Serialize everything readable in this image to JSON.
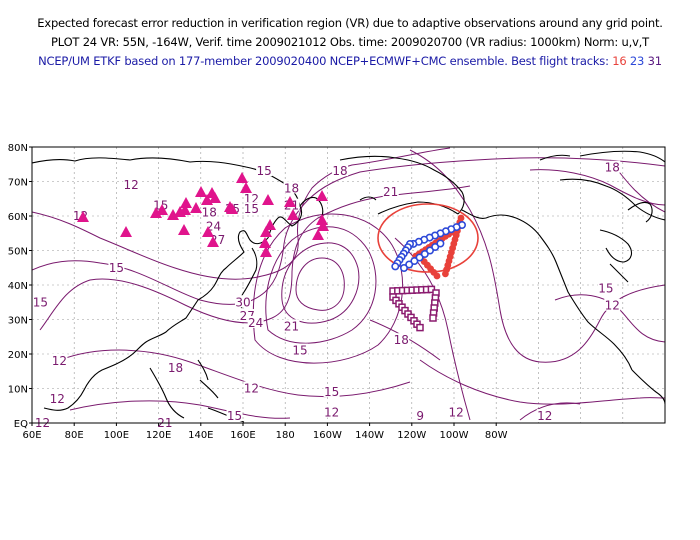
{
  "header": {
    "line1": "Expected forecast error reduction in verification region (VR) due to adaptive observations around any grid point.",
    "line2": "PLOT 24 VR: 55N, -164W, Verif. time 2009021012 Obs. time: 2009020700 (VR radius: 1000km) Norm: u,v,T",
    "line3_prefix": "NCEP/UM ETKF based on 177-member 2009020400 NCEP+ECMWF+CMC ensemble. Best flight tracks:",
    "tracks": [
      "16",
      "23",
      "31"
    ]
  },
  "axes": {
    "lat_labels": [
      "80N",
      "70N",
      "60N",
      "50N",
      "40N",
      "30N",
      "20N",
      "10N",
      "EQ"
    ],
    "lon_labels": [
      "60E",
      "80E",
      "100E",
      "120E",
      "140E",
      "160E",
      "180",
      "160W",
      "140W",
      "120W",
      "100W",
      "80W"
    ]
  },
  "contour_labels": [
    {
      "text": "15",
      "lon": 170,
      "lat": 73
    },
    {
      "text": "18",
      "lon": 206,
      "lat": 73
    },
    {
      "text": "18",
      "lon": 183,
      "lat": 68
    },
    {
      "text": "21",
      "lon": 183,
      "lat": 63
    },
    {
      "text": "12",
      "lon": 107,
      "lat": 69
    },
    {
      "text": "15",
      "lon": 121,
      "lat": 63
    },
    {
      "text": "12",
      "lon": 83,
      "lat": 60
    },
    {
      "text": "12",
      "lon": 164,
      "lat": 65
    },
    {
      "text": "15",
      "lon": 155,
      "lat": 62
    },
    {
      "text": "18",
      "lon": 144,
      "lat": 61
    },
    {
      "text": "24",
      "lon": 146,
      "lat": 57
    },
    {
      "text": "27",
      "lon": 148,
      "lat": 53
    },
    {
      "text": "15",
      "lon": 164,
      "lat": 62
    },
    {
      "text": "15",
      "lon": 100,
      "lat": 45
    },
    {
      "text": "15",
      "lon": 64,
      "lat": 35
    },
    {
      "text": "30",
      "lon": 160,
      "lat": 35
    },
    {
      "text": "27",
      "lon": 162,
      "lat": 31
    },
    {
      "text": "24",
      "lon": 166,
      "lat": 29
    },
    {
      "text": "21",
      "lon": 183,
      "lat": 28
    },
    {
      "text": "15",
      "lon": 187,
      "lat": 21
    },
    {
      "text": "12",
      "lon": 73,
      "lat": 18
    },
    {
      "text": "18",
      "lon": 128,
      "lat": 16
    },
    {
      "text": "12",
      "lon": 72,
      "lat": 7
    },
    {
      "text": "12",
      "lon": 164,
      "lat": 10
    },
    {
      "text": "15",
      "lon": 202,
      "lat": 9
    },
    {
      "text": "12",
      "lon": 202,
      "lat": 3
    },
    {
      "text": "15",
      "lon": 156,
      "lat": 2
    },
    {
      "text": "12",
      "lon": 65,
      "lat": 0
    },
    {
      "text": "21",
      "lon": 123,
      "lat": 0
    },
    {
      "text": "18",
      "lon": 235,
      "lat": 24
    },
    {
      "text": "9",
      "lon": 244,
      "lat": 2
    },
    {
      "text": "12",
      "lon": 261,
      "lat": 3
    },
    {
      "text": "12",
      "lon": 303,
      "lat": 2
    },
    {
      "text": "12",
      "lon": 335,
      "lat": 34
    },
    {
      "text": "15",
      "lon": 332,
      "lat": 39
    },
    {
      "text": "18",
      "lon": 335,
      "lat": 74
    },
    {
      "text": "21",
      "lon": 230,
      "lat": 67
    }
  ],
  "colors": {
    "contour": "#7a1a6e",
    "coast": "#000000",
    "grid": "#888888",
    "triangle": "#e0148c",
    "track16": "#e8413a",
    "track23": "#2d49d8",
    "track31": "#8a1a6e"
  }
}
